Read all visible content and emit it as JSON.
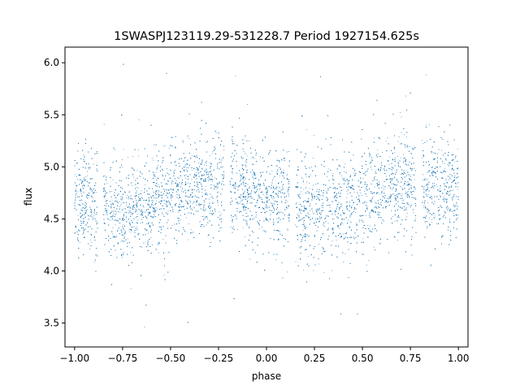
{
  "chart_data": {
    "type": "scatter",
    "title": "1SWASPJ123119.29-531228.7 Period 1927154.625s",
    "xlabel": "phase",
    "ylabel": "flux",
    "xlim": [
      -1.05,
      1.05
    ],
    "ylim": [
      3.27,
      6.15
    ],
    "xticks": [
      -1.0,
      -0.75,
      -0.5,
      -0.25,
      0.0,
      0.25,
      0.5,
      0.75,
      1.0
    ],
    "xtick_labels": [
      "−1.00",
      "−0.75",
      "−0.50",
      "−0.25",
      "0.00",
      "0.25",
      "0.50",
      "0.75",
      "1.00"
    ],
    "yticks": [
      3.5,
      4.0,
      4.5,
      5.0,
      5.5,
      6.0
    ],
    "ytick_labels": [
      "3.5",
      "4.0",
      "4.5",
      "5.0",
      "5.5",
      "6.0"
    ],
    "marker_color": "#1f77b4",
    "grid": false,
    "legend": "none",
    "series": [
      {
        "profile_phase": [
          0.0,
          0.1,
          0.2,
          0.3,
          0.4,
          0.5,
          0.6,
          0.7,
          0.8,
          0.9,
          1.0
        ],
        "profile_flux": [
          4.74,
          4.66,
          4.58,
          4.59,
          4.64,
          4.72,
          4.8,
          4.84,
          4.8,
          4.76,
          4.74
        ],
        "scatter_sigma": 0.22,
        "phase_gaps": [
          [
            -0.22,
            -0.19
          ],
          [
            0.12,
            0.15
          ],
          [
            0.79,
            0.81
          ]
        ],
        "n_points": 14000
      }
    ]
  }
}
